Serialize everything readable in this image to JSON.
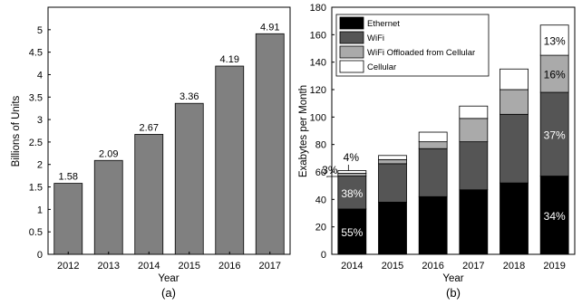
{
  "chart_data": [
    {
      "type": "bar",
      "caption": "(a)",
      "xlabel": "Year",
      "ylabel": "Billions of Units",
      "categories": [
        "2012",
        "2013",
        "2014",
        "2015",
        "2016",
        "2017"
      ],
      "values": [
        1.58,
        2.09,
        2.67,
        3.36,
        4.19,
        4.91
      ],
      "data_labels": [
        "1.58",
        "2.09",
        "2.67",
        "3.36",
        "4.19",
        "4.91"
      ],
      "ylim": [
        0,
        5.5
      ],
      "yticks": [
        0,
        0.5,
        1,
        1.5,
        2,
        2.5,
        3,
        3.5,
        4,
        4.5,
        5
      ],
      "ytick_labels": [
        "0",
        "0.5",
        "1",
        "1.5",
        "2",
        "2.5",
        "3",
        "3.5",
        "4",
        "4.5",
        "5"
      ],
      "grid": false,
      "bar_color": "#808080"
    },
    {
      "type": "bar",
      "stacked": true,
      "caption": "(b)",
      "xlabel": "Year",
      "ylabel": "Exabytes per Month",
      "categories": [
        "2014",
        "2015",
        "2016",
        "2017",
        "2018",
        "2019"
      ],
      "ylim": [
        0,
        180
      ],
      "yticks": [
        0,
        20,
        40,
        60,
        80,
        100,
        120,
        140,
        160,
        180
      ],
      "ytick_labels": [
        "0",
        "20",
        "40",
        "60",
        "80",
        "100",
        "120",
        "140",
        "160",
        "180"
      ],
      "grid": false,
      "legend_position": "top-left",
      "series": [
        {
          "name": "Ethernet",
          "color": "#000000",
          "values": [
            33,
            38,
            42,
            47,
            52,
            57
          ]
        },
        {
          "name": "WiFi",
          "color": "#555555",
          "values": [
            24,
            28,
            35,
            35,
            50,
            61
          ]
        },
        {
          "name": "WiFi Offloaded from Cellular",
          "color": "#aaaaaa",
          "values": [
            2,
            3,
            5,
            17,
            18,
            27
          ]
        },
        {
          "name": "Cellular",
          "color": "#ffffff",
          "values": [
            2,
            3,
            7,
            9,
            15,
            22
          ]
        }
      ],
      "annotations": [
        {
          "category": "2014",
          "series": "Ethernet",
          "text": "55%",
          "color": "#ffffff"
        },
        {
          "category": "2014",
          "series": "WiFi",
          "text": "38%",
          "color": "#ffffff"
        },
        {
          "category": "2014",
          "series": "WiFi Offloaded from Cellular",
          "text": "3%",
          "color": "#000000",
          "callout": true
        },
        {
          "category": "2014",
          "series": "Cellular",
          "text": "4%",
          "color": "#000000",
          "callout": true
        },
        {
          "category": "2019",
          "series": "Ethernet",
          "text": "34%",
          "color": "#ffffff"
        },
        {
          "category": "2019",
          "series": "WiFi",
          "text": "37%",
          "color": "#ffffff"
        },
        {
          "category": "2019",
          "series": "WiFi Offloaded from Cellular",
          "text": "16%",
          "color": "#000000"
        },
        {
          "category": "2019",
          "series": "Cellular",
          "text": "13%",
          "color": "#000000"
        }
      ]
    }
  ]
}
